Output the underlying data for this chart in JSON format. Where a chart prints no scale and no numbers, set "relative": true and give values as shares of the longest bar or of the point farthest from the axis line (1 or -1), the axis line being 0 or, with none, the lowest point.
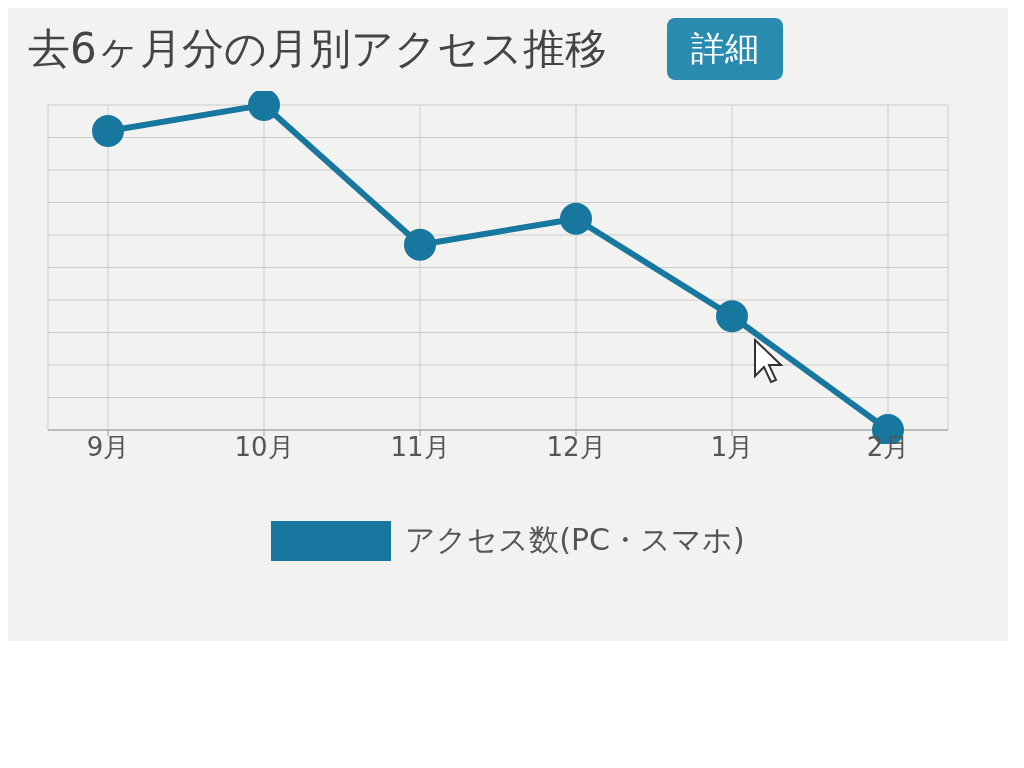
{
  "chart_data": {
    "type": "line",
    "title": "去6ヶ月分の月別アクセス推移",
    "annotations": [
      "詳細"
    ],
    "categories": [
      "9月",
      "10月",
      "11月",
      "12月",
      "1月",
      "2月"
    ],
    "series": [
      {
        "name": "アクセス数(PC・スマホ)",
        "color": "#17779e",
        "values": [
          0.92,
          1,
          0.57,
          0.65,
          0.35,
          0
        ]
      }
    ],
    "relative": true,
    "grid": true,
    "legend": "bottom",
    "marker": "circle"
  }
}
